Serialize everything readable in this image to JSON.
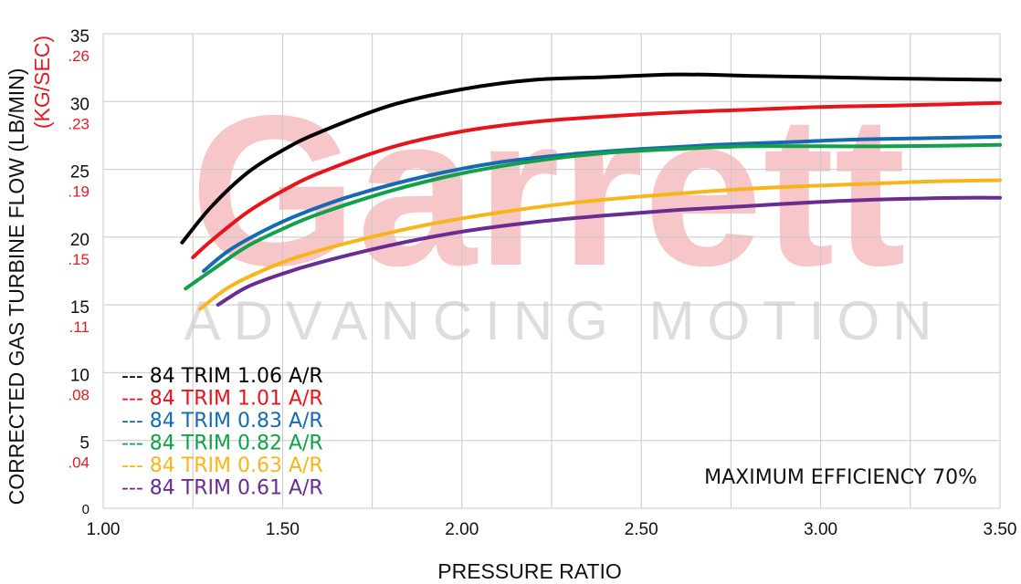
{
  "watermark": {
    "brand": "Garrett",
    "tagline": "ADVANCING MOTION"
  },
  "chart_data": {
    "type": "line",
    "xlabel": "PRESSURE RATIO",
    "ylabel": "CORRECTED GAS TURBINE FLOW (LB/MIN)",
    "ylabel_secondary": "(KG/SEC)",
    "xlim": [
      1.0,
      3.5
    ],
    "ylim": [
      0,
      35
    ],
    "x_ticks": [
      "1.00",
      "1.50",
      "2.00",
      "2.50",
      "3.00",
      "3.50"
    ],
    "y_ticks": [
      "0",
      "5",
      "10",
      "15",
      "20",
      "25",
      "30",
      "35"
    ],
    "y_ticks_secondary": [
      ".04",
      ".08",
      ".11",
      ".15",
      ".19",
      ".23",
      ".26"
    ],
    "grid": true,
    "annotation": "MAXIMUM EFFICIENCY 70%",
    "legend_position": "bottom-left",
    "legend_dash": "---",
    "series": [
      {
        "name": "84 TRIM 1.06 A/R",
        "color": "#000000",
        "x": [
          1.22,
          1.3,
          1.4,
          1.5,
          1.6,
          1.8,
          2.0,
          2.2,
          2.4,
          2.6,
          2.8,
          3.0,
          3.2,
          3.5
        ],
        "y": [
          19.6,
          22.2,
          24.7,
          26.4,
          27.7,
          29.7,
          30.9,
          31.6,
          31.8,
          32.0,
          31.9,
          31.8,
          31.7,
          31.6
        ]
      },
      {
        "name": "84 TRIM 1.01 A/R",
        "color": "#e8141c",
        "x": [
          1.25,
          1.3,
          1.4,
          1.5,
          1.6,
          1.8,
          2.0,
          2.2,
          2.4,
          2.6,
          2.8,
          3.0,
          3.2,
          3.5
        ],
        "y": [
          18.5,
          19.7,
          21.8,
          23.4,
          24.7,
          26.6,
          27.8,
          28.5,
          28.9,
          29.2,
          29.4,
          29.6,
          29.7,
          29.9
        ]
      },
      {
        "name": "84 TRIM 0.83 A/R",
        "color": "#1669b3",
        "x": [
          1.28,
          1.35,
          1.45,
          1.55,
          1.7,
          1.9,
          2.1,
          2.3,
          2.5,
          2.7,
          2.9,
          3.1,
          3.3,
          3.5
        ],
        "y": [
          17.5,
          19.0,
          20.5,
          21.7,
          23.1,
          24.5,
          25.5,
          26.1,
          26.5,
          26.8,
          27.0,
          27.2,
          27.3,
          27.4
        ]
      },
      {
        "name": "84 TRIM 0.82 A/R",
        "color": "#12a14a",
        "x": [
          1.23,
          1.3,
          1.4,
          1.5,
          1.6,
          1.8,
          2.0,
          2.2,
          2.4,
          2.6,
          2.8,
          3.0,
          3.2,
          3.5
        ],
        "y": [
          16.2,
          17.5,
          19.3,
          20.6,
          21.7,
          23.4,
          24.7,
          25.6,
          26.2,
          26.5,
          26.7,
          26.7,
          26.7,
          26.8
        ]
      },
      {
        "name": "84 TRIM 0.63 A/R",
        "color": "#f7b51b",
        "x": [
          1.27,
          1.35,
          1.45,
          1.55,
          1.7,
          1.9,
          2.1,
          2.3,
          2.5,
          2.7,
          2.9,
          3.1,
          3.3,
          3.5
        ],
        "y": [
          14.7,
          16.3,
          17.6,
          18.6,
          19.7,
          20.9,
          21.8,
          22.5,
          23.0,
          23.4,
          23.7,
          23.9,
          24.1,
          24.2
        ]
      },
      {
        "name": "84 TRIM 0.61 A/R",
        "color": "#6b2c91",
        "x": [
          1.32,
          1.4,
          1.5,
          1.6,
          1.8,
          2.0,
          2.2,
          2.4,
          2.6,
          2.8,
          3.0,
          3.2,
          3.4,
          3.5
        ],
        "y": [
          15.0,
          16.3,
          17.3,
          18.1,
          19.4,
          20.4,
          21.1,
          21.6,
          22.0,
          22.3,
          22.6,
          22.8,
          22.9,
          22.9
        ]
      }
    ]
  }
}
